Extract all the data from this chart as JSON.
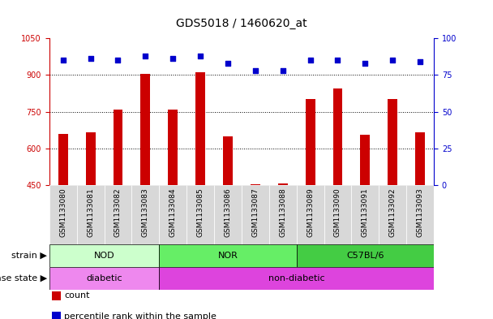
{
  "title": "GDS5018 / 1460620_at",
  "samples": [
    "GSM1133080",
    "GSM1133081",
    "GSM1133082",
    "GSM1133083",
    "GSM1133084",
    "GSM1133085",
    "GSM1133086",
    "GSM1133087",
    "GSM1133088",
    "GSM1133089",
    "GSM1133090",
    "GSM1133091",
    "GSM1133092",
    "GSM1133093"
  ],
  "counts": [
    660,
    665,
    760,
    905,
    760,
    910,
    650,
    452,
    458,
    800,
    845,
    655,
    800,
    665
  ],
  "percentiles": [
    85,
    86,
    85,
    88,
    86,
    88,
    83,
    78,
    78,
    85,
    85,
    83,
    85,
    84
  ],
  "ylim_left": [
    450,
    1050
  ],
  "ylim_right": [
    0,
    100
  ],
  "yticks_left": [
    450,
    600,
    750,
    900,
    1050
  ],
  "yticks_right": [
    0,
    25,
    50,
    75,
    100
  ],
  "bar_color": "#cc0000",
  "dot_color": "#0000cc",
  "strain_groups": [
    {
      "label": "NOD",
      "start": 0,
      "end": 4,
      "color": "#ccffcc"
    },
    {
      "label": "NOR",
      "start": 4,
      "end": 9,
      "color": "#66ee66"
    },
    {
      "label": "C57BL/6",
      "start": 9,
      "end": 14,
      "color": "#44cc44"
    }
  ],
  "disease_groups": [
    {
      "label": "diabetic",
      "start": 0,
      "end": 4,
      "color": "#ee88ee"
    },
    {
      "label": "non-diabetic",
      "start": 4,
      "end": 14,
      "color": "#dd44dd"
    }
  ],
  "strain_label": "strain",
  "disease_label": "disease state",
  "legend_items": [
    {
      "color": "#cc0000",
      "label": "count"
    },
    {
      "color": "#0000cc",
      "label": "percentile rank within the sample"
    }
  ],
  "bar_width": 0.35,
  "bg_color": "#ffffff",
  "sample_bg_color": "#d8d8d8",
  "tick_label_color_left": "#cc0000",
  "tick_label_color_right": "#0000cc",
  "title_fontsize": 10,
  "tick_fontsize": 7,
  "label_fontsize": 8,
  "sample_fontsize": 6.5
}
